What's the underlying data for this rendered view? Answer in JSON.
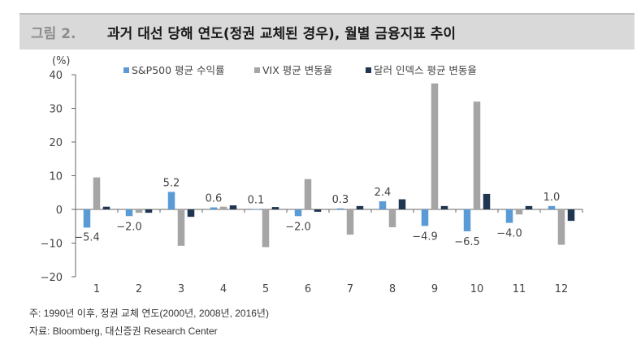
{
  "figure": {
    "label": "그림 2.",
    "title": "과거 대선 당해 연도(정권 교체된 경우), 월별 금융지표 추이"
  },
  "notes": {
    "note": "주: 1990년 이후, 정권 교체 연도(2000년, 2008년, 2016년)",
    "source": "자료: Bloomberg, 대신증권 Research Center"
  },
  "chart_data": {
    "type": "bar",
    "title": "과거 대선 당해 연도(정권 교체된 경우), 월별 금융지표 추이",
    "ylabel": "(%)",
    "xlabel": "",
    "ylim": [
      -20,
      40
    ],
    "yticks": [
      -20,
      -10,
      0,
      10,
      20,
      30,
      40
    ],
    "categories": [
      "1",
      "2",
      "3",
      "4",
      "5",
      "6",
      "7",
      "8",
      "9",
      "10",
      "11",
      "12"
    ],
    "legend_position": "top",
    "series": [
      {
        "name": "S&P500 평균 수익률",
        "color": "#5b9bd5",
        "values": [
          -5.4,
          -2.0,
          5.2,
          0.6,
          0.1,
          -2.0,
          0.3,
          2.4,
          -4.9,
          -6.5,
          -4.0,
          1.0
        ],
        "labels": [
          "-5.4",
          "-2.0",
          "5.2",
          "0.6",
          "0.1",
          "-2.0",
          "0.3",
          "2.4",
          "-4.9",
          "-6.5",
          "-4.0",
          "1.0"
        ]
      },
      {
        "name": "VIX 평균 변동율",
        "color": "#a5a5a5",
        "values": [
          9.5,
          -1.0,
          -10.8,
          0.8,
          -11.2,
          9.0,
          -7.5,
          -5.3,
          37.4,
          32.0,
          -1.5,
          -10.5
        ]
      },
      {
        "name": "달러 인덱스 평균 변동율",
        "color": "#1f3550",
        "values": [
          0.8,
          -1.0,
          -2.2,
          1.2,
          0.7,
          -0.7,
          1.0,
          3.0,
          1.0,
          4.6,
          1.0,
          -3.4
        ]
      }
    ]
  }
}
